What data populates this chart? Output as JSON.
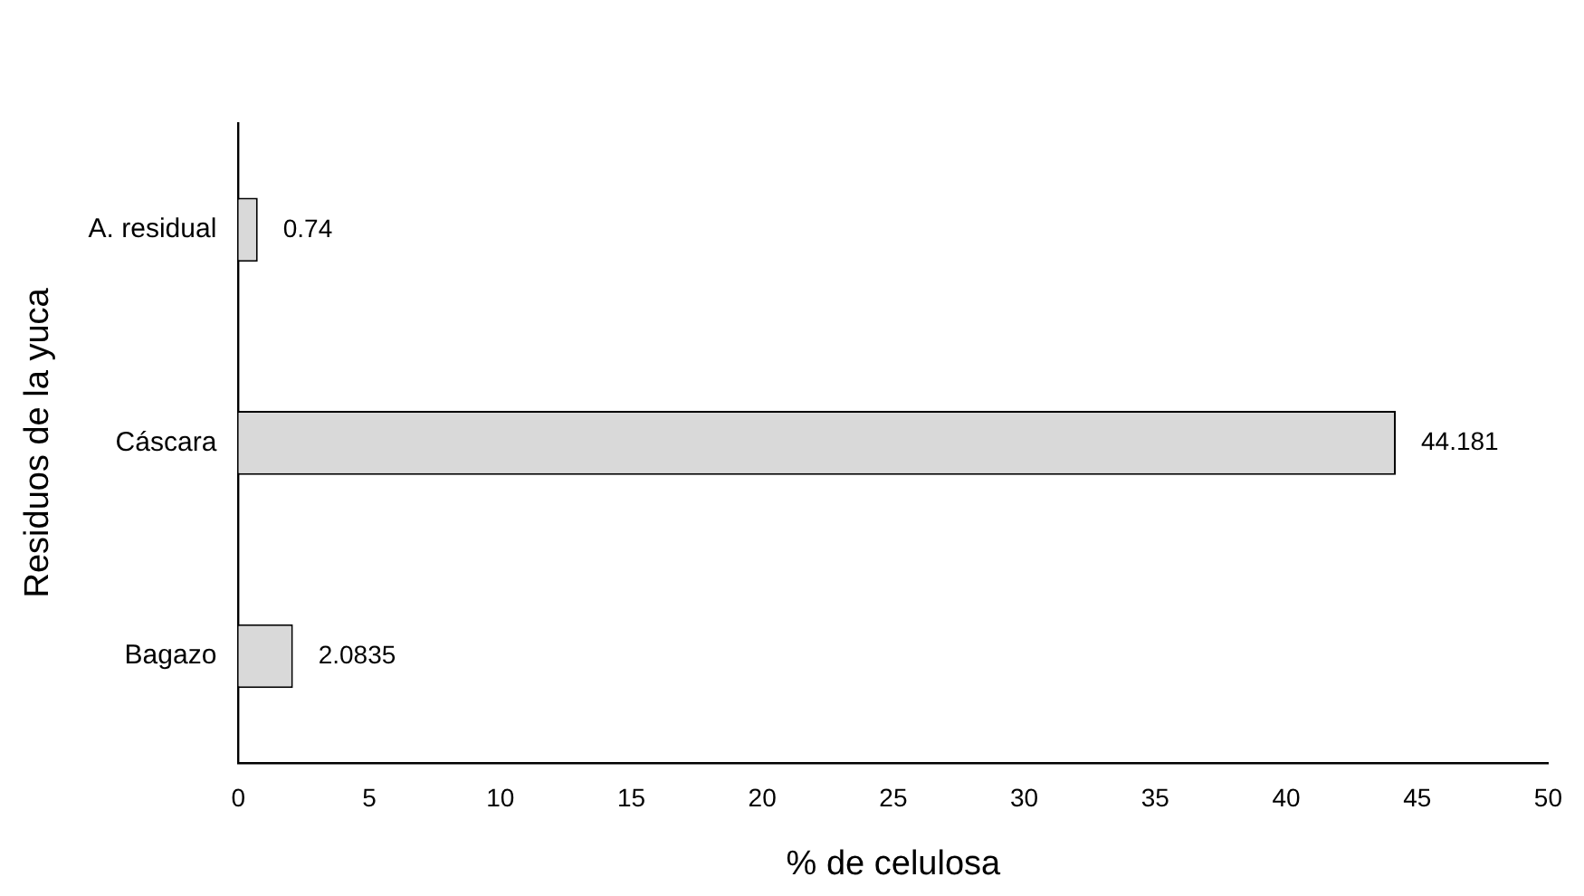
{
  "chart_data": {
    "type": "bar",
    "orientation": "horizontal",
    "xlabel": "% de celulosa",
    "ylabel": "Residuos de la yuca",
    "categories": [
      "A. residual",
      "Cáscara",
      "Bagazo"
    ],
    "values": [
      0.74,
      44.181,
      2.0835
    ],
    "color": "#d9d9d9",
    "xlim": [
      0,
      50
    ],
    "xticks": [
      0,
      5,
      10,
      15,
      20,
      25,
      30,
      35,
      40,
      45,
      50
    ],
    "data_labels": true,
    "legend": false
  }
}
